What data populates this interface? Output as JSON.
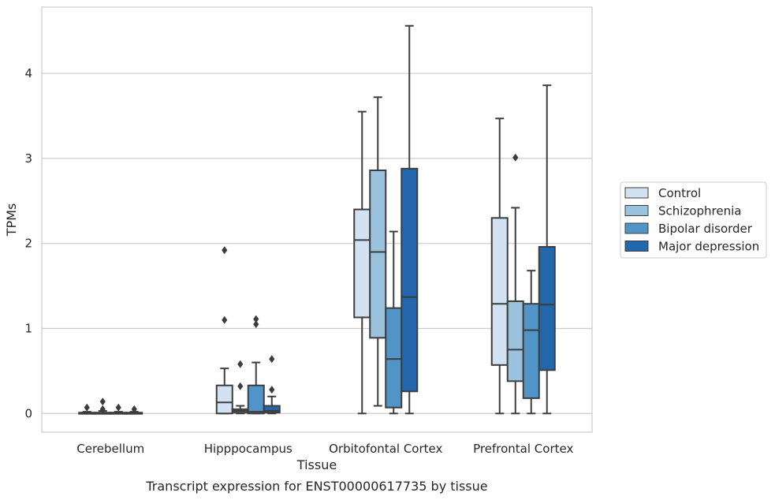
{
  "chart_data": {
    "type": "box",
    "title": "",
    "caption": "Transcript expression for ENST00000617735 by tissue",
    "xlabel": "Tissue",
    "ylabel": "TPMs",
    "ylim": [
      -0.22,
      4.78
    ],
    "yticks": [
      0,
      1,
      2,
      3,
      4
    ],
    "grid": "horizontal",
    "legend_position": "right",
    "categories": [
      "Cerebellum",
      "Hipppocampus",
      "Orbitofontal Cortex",
      "Prefrontal Cortex"
    ],
    "series": [
      {
        "name": "Control",
        "color": "#d2e2f2",
        "boxes": [
          {
            "whislo": 0,
            "q1": 0,
            "med": 0,
            "q3": 0.01,
            "whishi": 0.02,
            "fliers": [
              0.07
            ]
          },
          {
            "whislo": 0,
            "q1": 0,
            "med": 0.13,
            "q3": 0.33,
            "whishi": 0.53,
            "fliers": [
              1.1,
              1.92
            ]
          },
          {
            "whislo": 0,
            "q1": 1.13,
            "med": 2.04,
            "q3": 2.4,
            "whishi": 3.55,
            "fliers": []
          },
          {
            "whislo": 0,
            "q1": 0.57,
            "med": 1.29,
            "q3": 2.3,
            "whishi": 3.47,
            "fliers": []
          }
        ]
      },
      {
        "name": "Schizophrenia",
        "color": "#9ac2dd",
        "boxes": [
          {
            "whislo": 0,
            "q1": 0,
            "med": 0,
            "q3": 0.01,
            "whishi": 0.03,
            "fliers": [
              0.05,
              0.14
            ]
          },
          {
            "whislo": 0,
            "q1": 0.01,
            "med": 0.03,
            "q3": 0.05,
            "whishi": 0.09,
            "fliers": [
              0.32,
              0.58
            ]
          },
          {
            "whislo": 0.09,
            "q1": 0.89,
            "med": 1.9,
            "q3": 2.86,
            "whishi": 3.72,
            "fliers": []
          },
          {
            "whislo": 0,
            "q1": 0.38,
            "med": 0.75,
            "q3": 1.32,
            "whishi": 2.42,
            "fliers": [
              3.01
            ]
          }
        ]
      },
      {
        "name": "Bipolar disorder",
        "color": "#5195c8",
        "boxes": [
          {
            "whislo": 0,
            "q1": 0,
            "med": 0,
            "q3": 0.01,
            "whishi": 0.02,
            "fliers": [
              0.07
            ]
          },
          {
            "whislo": 0,
            "q1": 0,
            "med": 0.02,
            "q3": 0.33,
            "whishi": 0.6,
            "fliers": [
              1.05,
              1.11
            ]
          },
          {
            "whislo": 0,
            "q1": 0.07,
            "med": 0.64,
            "q3": 1.24,
            "whishi": 2.14,
            "fliers": []
          },
          {
            "whislo": 0,
            "q1": 0.18,
            "med": 0.98,
            "q3": 1.29,
            "whishi": 1.68,
            "fliers": []
          }
        ]
      },
      {
        "name": "Major depression",
        "color": "#2267ac",
        "boxes": [
          {
            "whislo": 0,
            "q1": 0,
            "med": 0,
            "q3": 0.01,
            "whishi": 0.02,
            "fliers": [
              0.05
            ]
          },
          {
            "whislo": 0,
            "q1": 0.01,
            "med": 0.03,
            "q3": 0.09,
            "whishi": 0.2,
            "fliers": [
              0.28,
              0.64
            ]
          },
          {
            "whislo": 0,
            "q1": 0.26,
            "med": 1.37,
            "q3": 2.88,
            "whishi": 4.56,
            "fliers": []
          },
          {
            "whislo": 0,
            "q1": 0.51,
            "med": 1.28,
            "q3": 1.96,
            "whishi": 3.86,
            "fliers": []
          }
        ]
      }
    ]
  }
}
